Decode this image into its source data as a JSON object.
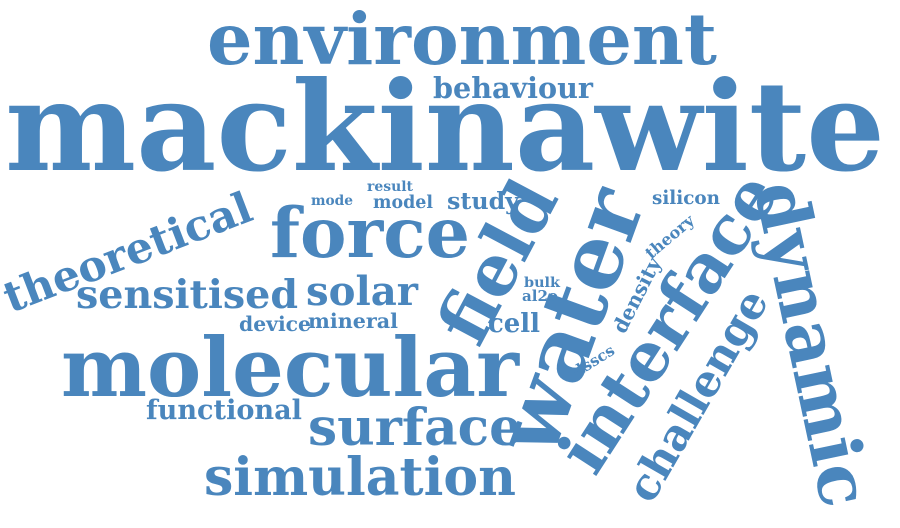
{
  "style": {
    "word_color": "#4a86bd",
    "background": "#ffffff"
  },
  "words": [
    "mackinawite",
    "environment",
    "behaviour",
    "molecular",
    "force",
    "field",
    "water",
    "interface",
    "dynamic",
    "challenge",
    "simulation",
    "surface",
    "theoretical",
    "sensitised",
    "solar",
    "functional",
    "cell",
    "study",
    "model",
    "result",
    "mode",
    "silicon",
    "theory",
    "density",
    "bulk",
    "al2o",
    "dsscs",
    "device",
    "mineral"
  ]
}
